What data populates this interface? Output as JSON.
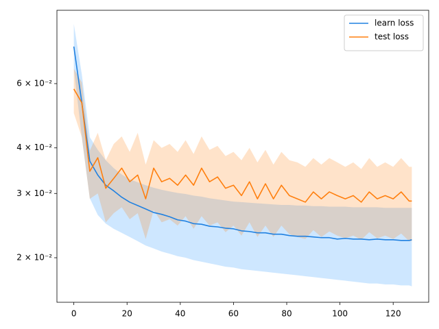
{
  "chart_data": {
    "type": "line",
    "log_y": true,
    "legend": "upper right",
    "x": [
      0,
      3,
      6,
      9,
      12,
      15,
      18,
      21,
      24,
      27,
      30,
      33,
      36,
      39,
      42,
      45,
      48,
      51,
      54,
      57,
      60,
      63,
      66,
      69,
      72,
      75,
      78,
      81,
      84,
      87,
      90,
      93,
      96,
      99,
      102,
      105,
      108,
      111,
      114,
      117,
      120,
      123,
      126,
      127
    ],
    "series": [
      {
        "name": "learn loss",
        "color": "#1f80e0",
        "band_color": "#1e90ff",
        "values": [
          0.0758,
          0.0532,
          0.0368,
          0.0337,
          0.0316,
          0.0305,
          0.0293,
          0.0284,
          0.0278,
          0.0272,
          0.0266,
          0.0263,
          0.0259,
          0.0254,
          0.0252,
          0.0248,
          0.0247,
          0.0244,
          0.0243,
          0.0241,
          0.024,
          0.0237,
          0.0236,
          0.0234,
          0.0234,
          0.0232,
          0.0232,
          0.023,
          0.0229,
          0.0229,
          0.0228,
          0.0227,
          0.0227,
          0.0225,
          0.0226,
          0.0225,
          0.0225,
          0.0224,
          0.0225,
          0.0224,
          0.0224,
          0.0223,
          0.0223,
          0.0224
        ],
        "lower": [
          0.0659,
          0.0428,
          0.0291,
          0.0262,
          0.0248,
          0.024,
          0.0234,
          0.0228,
          0.0222,
          0.0216,
          0.0212,
          0.0208,
          0.0205,
          0.0202,
          0.02,
          0.0197,
          0.0195,
          0.0193,
          0.0191,
          0.0189,
          0.0188,
          0.0186,
          0.0185,
          0.0184,
          0.0183,
          0.0182,
          0.0181,
          0.018,
          0.0179,
          0.0178,
          0.0177,
          0.0176,
          0.0175,
          0.0174,
          0.0173,
          0.0172,
          0.0171,
          0.017,
          0.017,
          0.0169,
          0.0169,
          0.0168,
          0.0168,
          0.0167
        ],
        "upper": [
          0.0874,
          0.0636,
          0.0428,
          0.0395,
          0.037,
          0.0352,
          0.0338,
          0.0328,
          0.0322,
          0.0316,
          0.0311,
          0.0307,
          0.0304,
          0.0301,
          0.0299,
          0.0296,
          0.0294,
          0.0291,
          0.0289,
          0.0287,
          0.0285,
          0.0284,
          0.0283,
          0.0282,
          0.0281,
          0.028,
          0.0279,
          0.0279,
          0.0278,
          0.0278,
          0.0277,
          0.0277,
          0.0276,
          0.0276,
          0.0276,
          0.0275,
          0.0275,
          0.0275,
          0.0275,
          0.0274,
          0.0274,
          0.0274,
          0.0274,
          0.0274
        ]
      },
      {
        "name": "test loss",
        "color": "#ff7f0e",
        "band_color": "#ff7f0e",
        "values": [
          0.058,
          0.0532,
          0.0345,
          0.0376,
          0.031,
          0.033,
          0.0352,
          0.0323,
          0.0337,
          0.029,
          0.0352,
          0.0323,
          0.033,
          0.0316,
          0.0337,
          0.0316,
          0.0352,
          0.0323,
          0.0333,
          0.031,
          0.0316,
          0.0296,
          0.0323,
          0.029,
          0.0319,
          0.029,
          0.0316,
          0.0296,
          0.029,
          0.0284,
          0.0303,
          0.029,
          0.0303,
          0.0296,
          0.029,
          0.0296,
          0.0284,
          0.0303,
          0.029,
          0.0296,
          0.029,
          0.0303,
          0.0286,
          0.0286
        ],
        "lower": [
          0.0498,
          0.0428,
          0.029,
          0.03,
          0.025,
          0.0265,
          0.0275,
          0.0255,
          0.0265,
          0.0225,
          0.027,
          0.025,
          0.0255,
          0.0245,
          0.026,
          0.024,
          0.026,
          0.0245,
          0.025,
          0.0235,
          0.0245,
          0.023,
          0.025,
          0.0228,
          0.0245,
          0.0228,
          0.0245,
          0.0232,
          0.0228,
          0.0225,
          0.0238,
          0.0228,
          0.0236,
          0.023,
          0.0226,
          0.023,
          0.0224,
          0.0235,
          0.0226,
          0.023,
          0.0225,
          0.0233,
          0.0222,
          0.0222
        ],
        "upper": [
          0.0659,
          0.0605,
          0.0393,
          0.044,
          0.037,
          0.041,
          0.043,
          0.039,
          0.044,
          0.036,
          0.042,
          0.04,
          0.041,
          0.039,
          0.042,
          0.0385,
          0.043,
          0.0395,
          0.0405,
          0.038,
          0.039,
          0.037,
          0.04,
          0.0365,
          0.0395,
          0.036,
          0.039,
          0.037,
          0.0365,
          0.0355,
          0.0375,
          0.036,
          0.0375,
          0.0365,
          0.0355,
          0.0365,
          0.035,
          0.0375,
          0.0355,
          0.0365,
          0.0355,
          0.0375,
          0.0355,
          0.0355
        ]
      }
    ],
    "xlim": [
      -6.35,
      133.35
    ],
    "xticks": [
      0,
      20,
      40,
      60,
      80,
      100,
      120
    ],
    "ylim": [
      0.0151,
      0.0953
    ],
    "yticks": [
      {
        "value": 0.02,
        "label": "2 × 10⁻²"
      },
      {
        "value": 0.03,
        "label": "3 × 10⁻²"
      },
      {
        "value": 0.04,
        "label": "4 × 10⁻²"
      },
      {
        "value": 0.06,
        "label": "6 × 10⁻²"
      }
    ]
  }
}
